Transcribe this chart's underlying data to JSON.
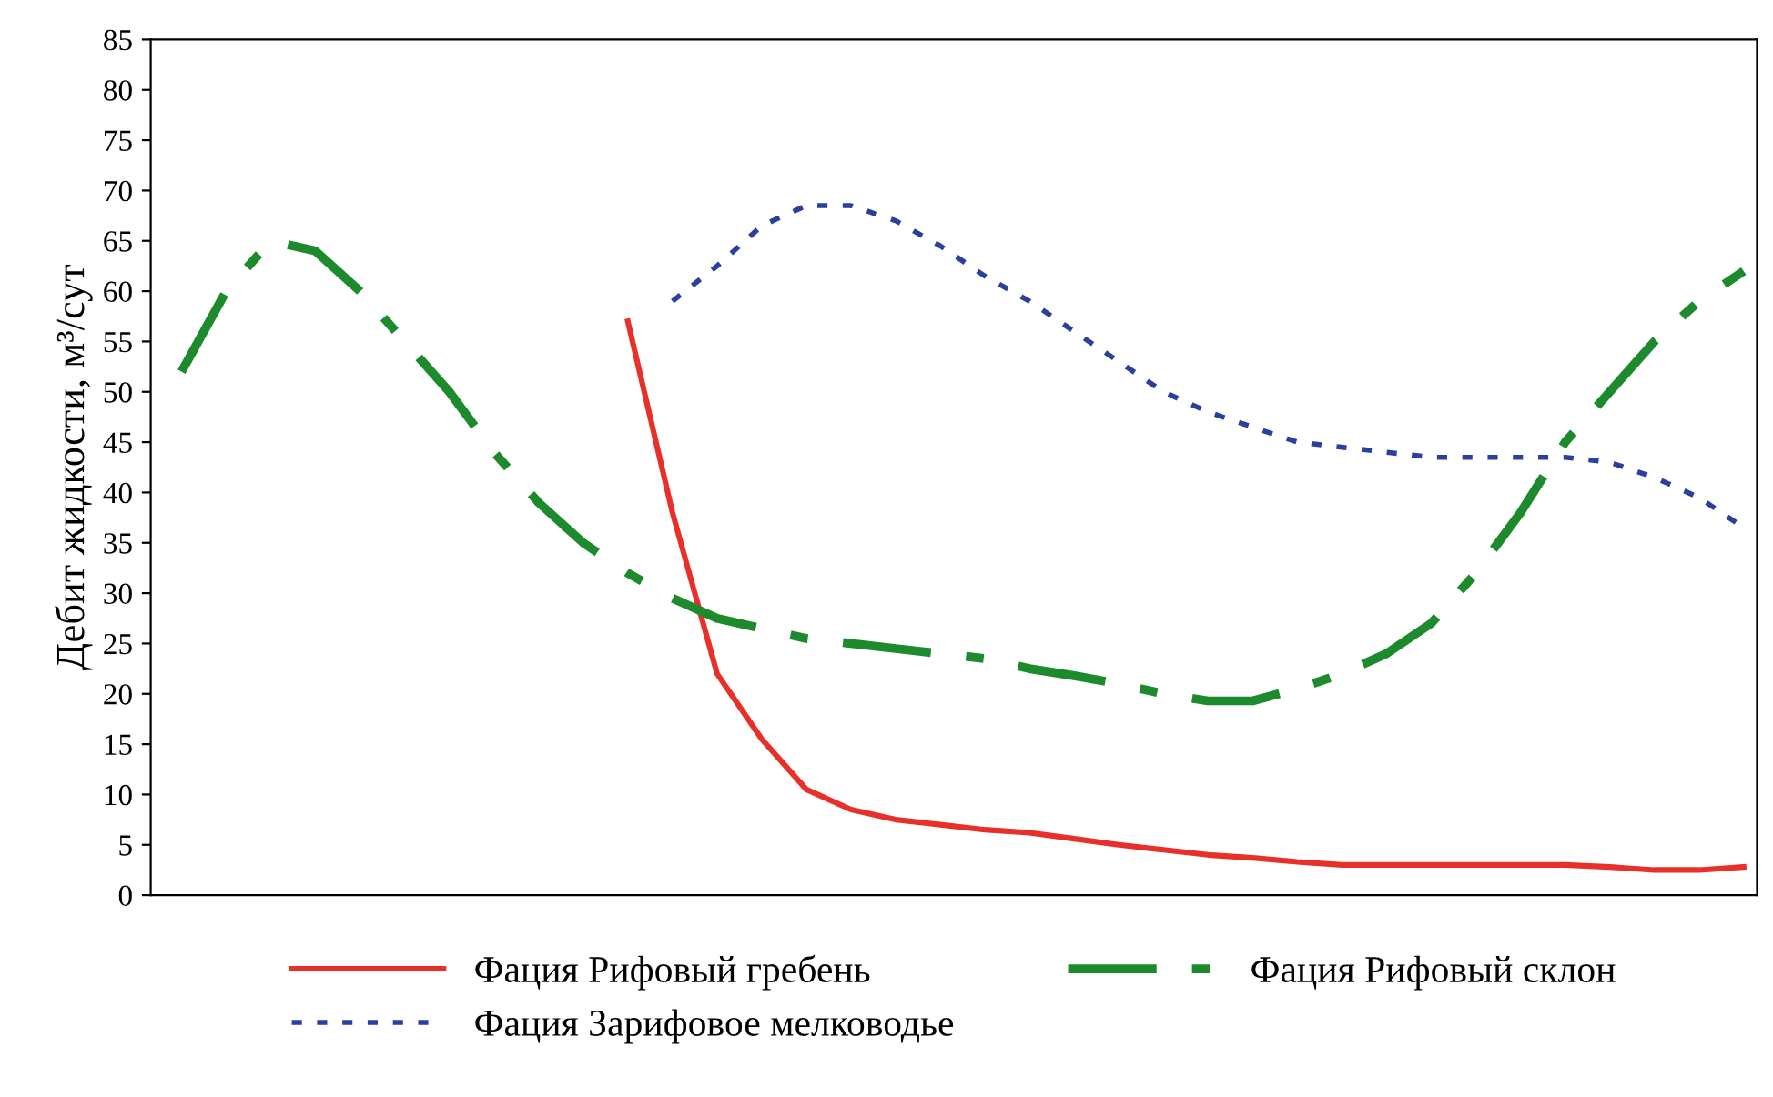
{
  "chart_data": {
    "type": "line",
    "ylabel": "Дебит жидкости, м³/сут",
    "categories": [
      null,
      null,
      null,
      null,
      null,
      null,
      null,
      null,
      null,
      null,
      null,
      null,
      null,
      null,
      null,
      null,
      null,
      null,
      null,
      null,
      null,
      null,
      null,
      null,
      null,
      null,
      null,
      null,
      null,
      null,
      null,
      null,
      null,
      null,
      null,
      null
    ],
    "series": [
      {
        "name": "Фация Рифовый гребень",
        "color": "#e8302a",
        "line_style": "solid",
        "values": [
          null,
          null,
          null,
          null,
          null,
          null,
          null,
          null,
          null,
          null,
          57,
          38,
          22,
          15.5,
          10.5,
          8.5,
          7.5,
          7,
          6.5,
          6.2,
          5.6,
          5,
          4.5,
          4,
          3.7,
          3.3,
          3,
          3,
          3,
          3,
          3,
          3,
          2.8,
          2.5,
          2.5,
          2.8
        ]
      },
      {
        "name": "Фация Зарифовое мелководье",
        "color": "#2a3f9e",
        "line_style": "dotted",
        "values": [
          null,
          null,
          null,
          null,
          null,
          null,
          null,
          null,
          null,
          null,
          null,
          59,
          62.5,
          66.5,
          68.5,
          68.5,
          67,
          64.5,
          61.5,
          59,
          56,
          53,
          50,
          48,
          46.5,
          45,
          44.5,
          44,
          43.5,
          43.5,
          43.5,
          43.5,
          43,
          41.5,
          39.5,
          36.5
        ]
      },
      {
        "name": "Фация Рифовый склон",
        "color": "#1e8a2e",
        "line_style": "dashed",
        "values": [
          52,
          60,
          65,
          64,
          60,
          55,
          50,
          44,
          39,
          35,
          32,
          29.5,
          27.5,
          26.5,
          25.5,
          25,
          24.5,
          24,
          23.5,
          22.5,
          21.8,
          21,
          20,
          19.3,
          19.3,
          20.5,
          22,
          24,
          27,
          32,
          38,
          45,
          50,
          55,
          59,
          62
        ]
      }
    ],
    "ylim": [
      0,
      85
    ],
    "yticks": [
      0,
      5,
      10,
      15,
      20,
      25,
      30,
      35,
      40,
      45,
      50,
      55,
      60,
      65,
      70,
      75,
      80,
      85
    ],
    "grid": false,
    "legend": "bottom",
    "tick_labels": "y"
  }
}
